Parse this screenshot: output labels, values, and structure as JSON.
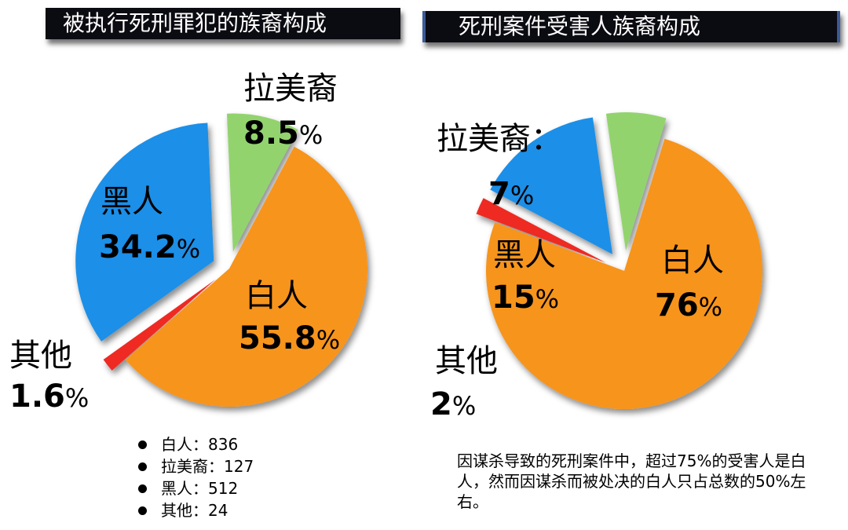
{
  "colors": {
    "white": "#F7941D",
    "hispanic": "#92D36E",
    "black": "#1A8FE8",
    "other": "#EE2A24"
  },
  "chart_data": [
    {
      "type": "pie",
      "title": "被执行死刑罪犯的族裔构成",
      "slices": [
        {
          "label": "白人",
          "value": 55.8,
          "pct_text": "55.8",
          "color_key": "white",
          "explode": false
        },
        {
          "label": "其他",
          "value": 1.6,
          "pct_text": "1.6",
          "color_key": "other",
          "explode": true
        },
        {
          "label": "黑人",
          "value": 34.2,
          "pct_text": "34.2",
          "color_key": "black",
          "explode": true
        },
        {
          "label": "拉美裔",
          "value": 8.5,
          "pct_text": "8.5",
          "color_key": "hispanic",
          "explode": true
        }
      ],
      "legend": [
        {
          "label": "白人",
          "sep": "：",
          "count": "836"
        },
        {
          "label": "拉美裔",
          "sep": "：",
          "count": "127"
        },
        {
          "label": "黑人",
          "sep": "：",
          "count": "512"
        },
        {
          "label": "其他",
          "sep": "：",
          "count": "24"
        }
      ]
    },
    {
      "type": "pie",
      "title": "死刑案件受害人族裔构成",
      "slices": [
        {
          "label": "白人",
          "value": 76,
          "pct_text": "76",
          "color_key": "white",
          "explode": false
        },
        {
          "label": "其他",
          "value": 2,
          "pct_text": "2",
          "color_key": "other",
          "explode": true
        },
        {
          "label": "黑人",
          "value": 15,
          "pct_text": "15",
          "color_key": "black",
          "explode": true
        },
        {
          "label": "拉美裔：",
          "value": 7,
          "pct_text": "7",
          "color_key": "hispanic",
          "explode": true
        }
      ]
    }
  ],
  "percent_sign": "%",
  "note": "因谋杀导致的死刑案件中，超过75%的受害人是白人，然而因谋杀而被处决的白人只占总数的50%左右。"
}
